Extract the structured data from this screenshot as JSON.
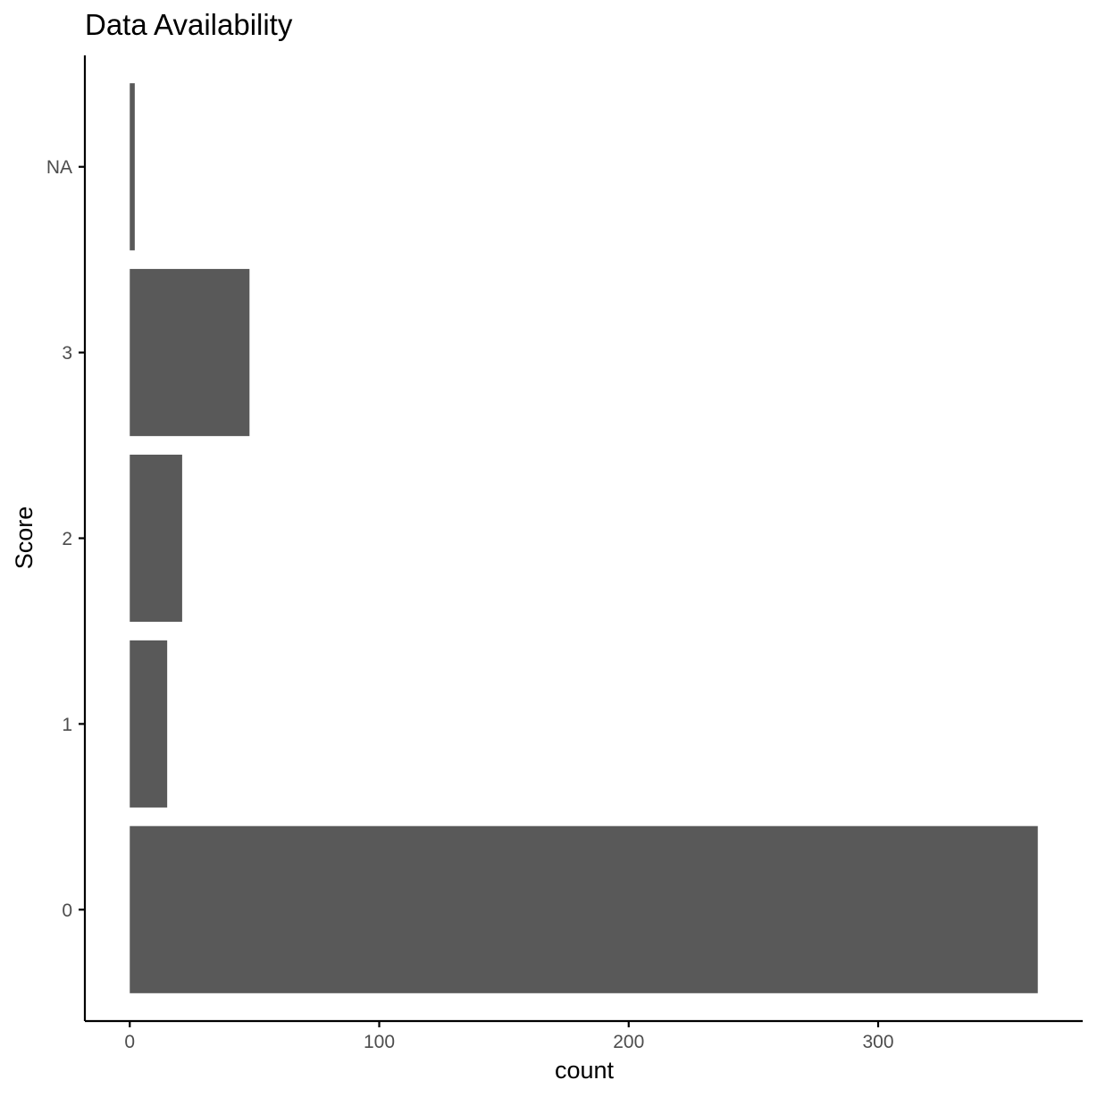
{
  "chart_data": {
    "type": "bar",
    "orientation": "horizontal",
    "title": "Data Availability",
    "xlabel": "count",
    "ylabel": "Score",
    "categories": [
      "0",
      "1",
      "2",
      "3",
      "NA"
    ],
    "values": [
      364,
      15,
      21,
      48,
      2
    ],
    "xticks": [
      "0",
      "100",
      "200",
      "300"
    ],
    "xlim": [
      -18,
      382
    ],
    "grid": false,
    "legend": "none",
    "colors": {
      "bar": "#595959",
      "axis": "#000000",
      "tick_text": "#4d4d4d"
    }
  }
}
